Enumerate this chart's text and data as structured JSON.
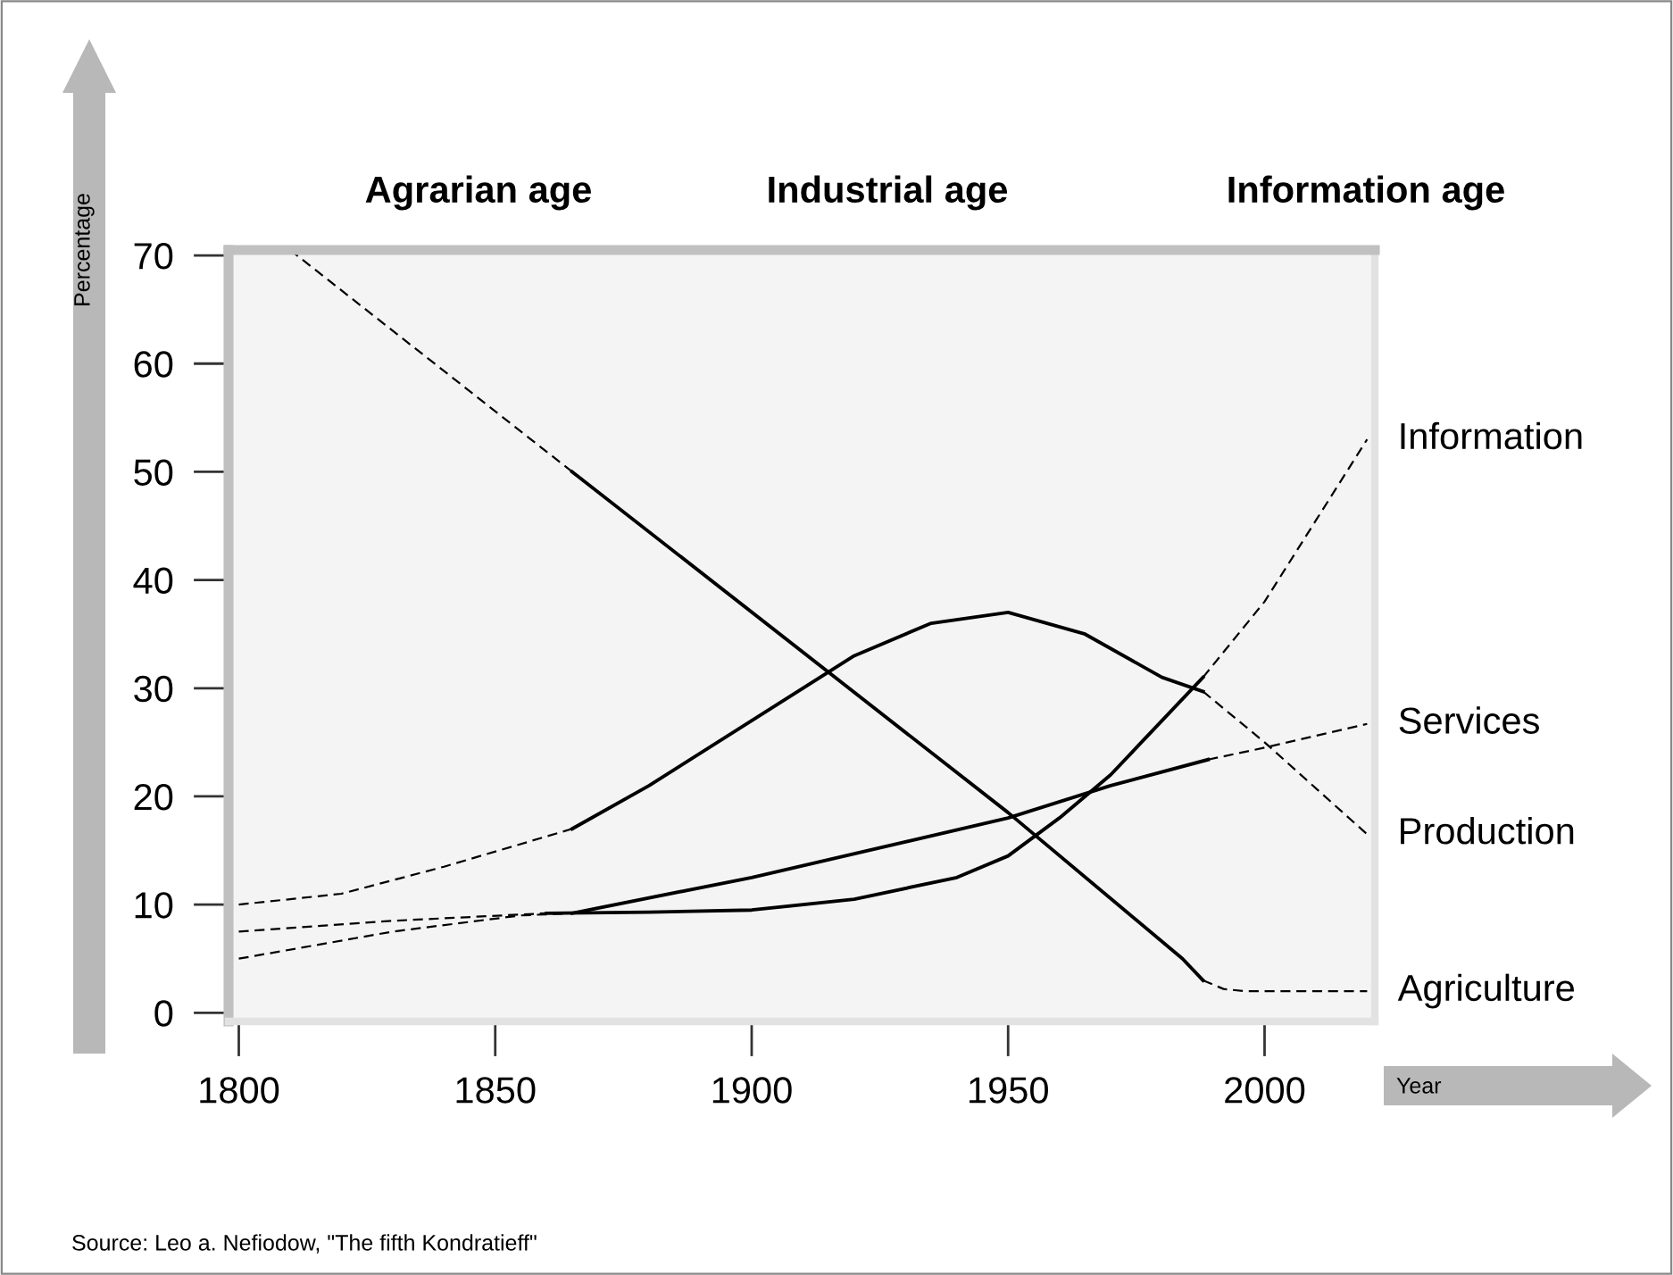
{
  "chart_data": {
    "type": "line",
    "xlabel": "Year",
    "ylabel": "Percentage",
    "xlim": [
      1798,
      2021.5
    ],
    "ylim": [
      -0.8,
      70.5
    ],
    "xticks": [
      1800,
      1850,
      1900,
      1950,
      2000
    ],
    "yticks": [
      0,
      10,
      20,
      30,
      40,
      50,
      60,
      70
    ],
    "grid": false,
    "legend": false,
    "marker": "none",
    "series": [
      {
        "color": "#000000",
        "line_style": "dashed",
        "x": [
          1810,
          1865
        ],
        "values": [
          70.5,
          50
        ]
      },
      {
        "color": "#000000",
        "line_style": "solid",
        "x": [
          1865,
          1950,
          1984,
          1988
        ],
        "values": [
          50,
          18.5,
          5,
          3
        ]
      },
      {
        "name": "Agriculture",
        "color": "#000000",
        "line_style": "dashed",
        "x": [
          1988,
          1992,
          1996,
          2020
        ],
        "values": [
          3,
          2.2,
          2,
          2
        ]
      },
      {
        "color": "#000000",
        "line_style": "dashed",
        "x": [
          1800,
          1820,
          1840,
          1865
        ],
        "values": [
          10,
          11,
          13.5,
          17
        ]
      },
      {
        "color": "#000000",
        "line_style": "solid",
        "x": [
          1865,
          1880,
          1900,
          1920,
          1935,
          1950,
          1965,
          1980,
          1988
        ],
        "values": [
          17,
          21,
          27,
          33,
          36,
          37,
          35,
          31,
          29.7
        ]
      },
      {
        "name": "Production",
        "color": "#000000",
        "line_style": "dashed",
        "x": [
          1988,
          2000,
          2020
        ],
        "values": [
          29.7,
          25,
          16.5
        ]
      },
      {
        "color": "#000000",
        "line_style": "dashed",
        "x": [
          1800,
          1830,
          1855,
          1865
        ],
        "values": [
          5,
          7.5,
          9,
          9.2
        ]
      },
      {
        "color": "#000000",
        "line_style": "solid",
        "x": [
          1865,
          1900,
          1950,
          1970,
          1989
        ],
        "values": [
          9.2,
          12.5,
          18,
          21,
          23.4
        ]
      },
      {
        "name": "Services",
        "color": "#000000",
        "line_style": "dashed",
        "x": [
          1989,
          2000,
          2020
        ],
        "values": [
          23.4,
          24.5,
          26.7
        ]
      },
      {
        "color": "#000000",
        "line_style": "dashed",
        "x": [
          1800,
          1830,
          1860
        ],
        "values": [
          7.5,
          8.5,
          9.2
        ]
      },
      {
        "color": "#000000",
        "line_style": "solid",
        "x": [
          1860,
          1880,
          1900,
          1920,
          1940,
          1950,
          1960,
          1970,
          1980,
          1988
        ],
        "values": [
          9.2,
          9.3,
          9.5,
          10.5,
          12.5,
          14.5,
          18,
          22,
          27,
          31
        ]
      },
      {
        "name": "Information",
        "color": "#000000",
        "line_style": "dashed",
        "x": [
          1988,
          2000,
          2010,
          2020
        ],
        "values": [
          31,
          38,
          45.5,
          53
        ]
      }
    ],
    "annotations": [
      "Agrarian age",
      "Industrial age",
      "Information age",
      "Source: Leo a. Nefiodow, \"The fifth Kondratieff\""
    ]
  }
}
